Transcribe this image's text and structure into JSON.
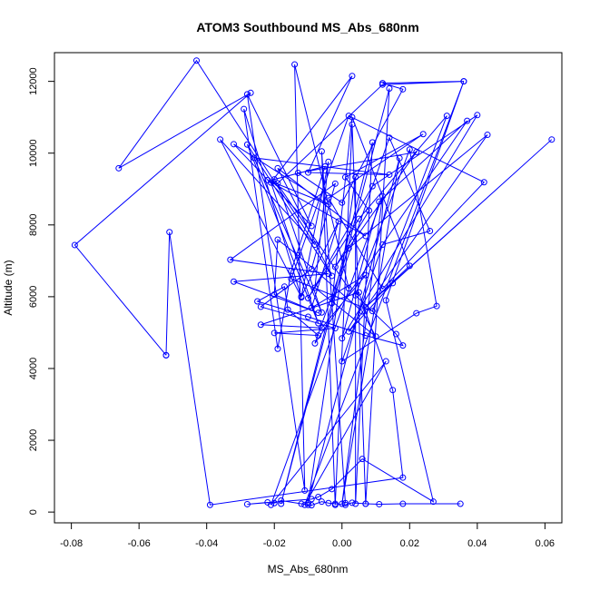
{
  "chart_data": {
    "type": "line",
    "title": "ATOM3 Southbound MS_Abs_680nm",
    "xlabel": "MS_Abs_680nm",
    "ylabel": "Altitude (m)",
    "xlim": [
      -0.085,
      0.065
    ],
    "ylim": [
      -300,
      12800
    ],
    "xticks": [
      -0.08,
      -0.06,
      -0.04,
      -0.02,
      0.0,
      0.02,
      0.04,
      0.06
    ],
    "xtick_labels": [
      "-0.08",
      "-0.06",
      "-0.04",
      "-0.02",
      "0.00",
      "0.02",
      "0.04",
      "0.06"
    ],
    "yticks": [
      0,
      2000,
      4000,
      6000,
      8000,
      10000,
      12000
    ],
    "ytick_labels": [
      "0",
      "2000",
      "4000",
      "6000",
      "8000",
      "10000",
      "12000"
    ],
    "grid": false,
    "marker": "open-circle",
    "color": "#0000ff",
    "series": [
      {
        "points": [
          [
            -0.052,
            4370
          ],
          [
            -0.079,
            7440
          ],
          [
            -0.027,
            11680
          ],
          [
            -0.066,
            9580
          ],
          [
            -0.043,
            12580
          ],
          [
            -0.008,
            7450
          ],
          [
            -0.036,
            10380
          ],
          [
            -0.012,
            5980
          ],
          [
            -0.029,
            11230
          ],
          [
            -0.019,
            4550
          ],
          [
            -0.015,
            6720
          ],
          [
            -0.005,
            9630
          ],
          [
            -0.02,
            9270
          ],
          [
            0.002,
            6230
          ],
          [
            -0.014,
            12470
          ],
          [
            -0.011,
            600
          ],
          [
            -0.028,
            11640
          ],
          [
            -0.009,
            7970
          ],
          [
            -0.032,
            10250
          ],
          [
            -0.004,
            8570
          ],
          [
            -0.022,
            9250
          ],
          [
            0.007,
            7690
          ],
          [
            -0.019,
            9580
          ],
          [
            -0.003,
            6580
          ],
          [
            -0.028,
            10240
          ],
          [
            -0.007,
            5260
          ],
          [
            -0.021,
            9180
          ],
          [
            0.003,
            12150
          ],
          [
            -0.01,
            9460
          ],
          [
            0.014,
            9400
          ],
          [
            -0.026,
            9870
          ],
          [
            -0.006,
            5560
          ],
          [
            -0.019,
            9160
          ],
          [
            0.012,
            11910
          ],
          [
            0.036,
            12000
          ],
          [
            0.012,
            11950
          ],
          [
            0.018,
            11780
          ],
          [
            0.0,
            8620
          ],
          [
            -0.013,
            9450
          ],
          [
            0.022,
            10030
          ],
          [
            -0.002,
            6830
          ],
          [
            0.008,
            8400
          ],
          [
            0.001,
            9330
          ],
          [
            0.024,
            10530
          ],
          [
            -0.004,
            8750
          ],
          [
            0.012,
            6220
          ],
          [
            0.042,
            9190
          ],
          [
            0.002,
            11040
          ],
          [
            -0.015,
            6500
          ],
          [
            0.009,
            5600
          ],
          [
            0.031,
            11040
          ],
          [
            0.005,
            8170
          ],
          [
            -0.01,
            5960
          ],
          [
            0.009,
            9080
          ],
          [
            0.04,
            11060
          ],
          [
            0.0,
            4840
          ],
          [
            0.011,
            8650
          ],
          [
            0.037,
            10900
          ],
          [
            -0.008,
            4700
          ],
          [
            0.002,
            7350
          ],
          [
            0.043,
            10510
          ],
          [
            0.002,
            5030
          ],
          [
            0.015,
            6380
          ],
          [
            0.062,
            10380
          ],
          [
            0.007,
            5710
          ],
          [
            0.02,
            6860
          ],
          [
            0.003,
            11000
          ],
          [
            -0.003,
            5820
          ],
          [
            0.014,
            10430
          ],
          [
            0.026,
            7830
          ],
          [
            0.012,
            7450
          ],
          [
            0.0,
            4200
          ],
          [
            0.022,
            5540
          ],
          [
            0.028,
            5740
          ],
          [
            0.02,
            10100
          ],
          [
            0.004,
            6040
          ],
          [
            0.016,
            4960
          ],
          [
            0.018,
            4640
          ],
          [
            0.007,
            4920
          ],
          [
            -0.01,
            5440
          ],
          [
            -0.025,
            5870
          ],
          [
            -0.017,
            6280
          ],
          [
            -0.016,
            5640
          ],
          [
            -0.007,
            4920
          ],
          [
            -0.02,
            4990
          ],
          [
            -0.002,
            5120
          ],
          [
            -0.024,
            5720
          ],
          [
            -0.009,
            6770
          ],
          [
            -0.002,
            9150
          ],
          [
            -0.033,
            7030
          ],
          [
            -0.004,
            6640
          ],
          [
            -0.032,
            6420
          ],
          [
            -0.007,
            5550
          ],
          [
            -0.02,
            6060
          ],
          [
            -0.019,
            7590
          ],
          [
            -0.013,
            7150
          ],
          [
            0.006,
            5590
          ],
          [
            0.01,
            4890
          ],
          [
            -0.008,
            6250
          ],
          [
            -0.004,
            9760
          ],
          [
            -0.012,
            6010
          ],
          [
            -0.001,
            8100
          ],
          [
            -0.009,
            5690
          ],
          [
            0.007,
            6600
          ],
          [
            -0.006,
            5130
          ],
          [
            -0.024,
            5220
          ],
          [
            0.005,
            6120
          ],
          [
            0.015,
            3400
          ],
          [
            0.018,
            960
          ],
          [
            -0.039,
            200
          ],
          [
            -0.051,
            7800
          ],
          [
            -0.052,
            4370
          ]
        ]
      },
      {
        "points": [
          [
            0.035,
            230
          ],
          [
            0.018,
            230
          ],
          [
            0.011,
            220
          ],
          [
            0.007,
            230
          ],
          [
            0.003,
            260
          ],
          [
            0.001,
            200
          ],
          [
            -0.002,
            230
          ],
          [
            -0.004,
            250
          ],
          [
            -0.006,
            290
          ],
          [
            -0.009,
            190
          ],
          [
            -0.01,
            200
          ],
          [
            -0.012,
            230
          ],
          [
            -0.018,
            320
          ],
          [
            -0.02,
            250
          ],
          [
            -0.022,
            270
          ],
          [
            -0.028,
            220
          ],
          [
            -0.009,
            360
          ],
          [
            -0.007,
            420
          ],
          [
            -0.003,
            640
          ],
          [
            0.006,
            1480
          ],
          [
            0.027,
            290
          ],
          [
            0.013,
            5900
          ],
          [
            0.036,
            12000
          ],
          [
            -0.011,
            200
          ],
          [
            0.013,
            4200
          ],
          [
            -0.021,
            200
          ],
          [
            0.012,
            8800
          ],
          [
            0.0,
            230
          ],
          [
            0.017,
            9860
          ],
          [
            -0.01,
            250
          ],
          [
            0.004,
            9330
          ],
          [
            0.004,
            230
          ],
          [
            0.009,
            10300
          ],
          [
            -0.018,
            230
          ],
          [
            0.014,
            11800
          ],
          [
            0.007,
            230
          ],
          [
            0.003,
            10800
          ],
          [
            -0.002,
            200
          ],
          [
            -0.006,
            10050
          ],
          [
            0.001,
            250
          ]
        ]
      }
    ]
  }
}
